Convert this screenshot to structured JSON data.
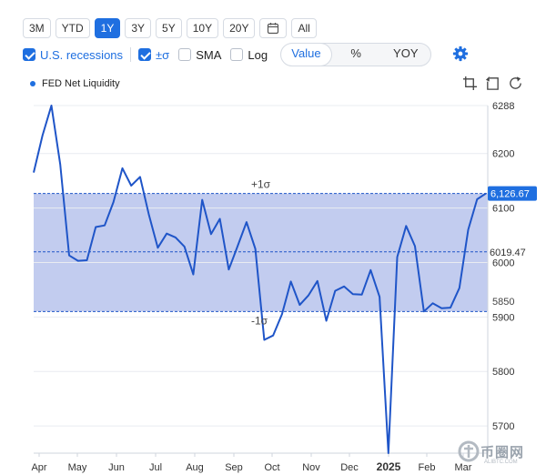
{
  "range_buttons": [
    "3M",
    "YTD",
    "1Y",
    "3Y",
    "5Y",
    "10Y",
    "20Y",
    "All"
  ],
  "active_range": "1Y",
  "options": {
    "recessions_label": "U.S. recessions",
    "sigma_label": "±σ",
    "sma_label": "SMA",
    "log_label": "Log"
  },
  "view_modes": [
    "Value",
    "%",
    "YOY"
  ],
  "active_view": "Value",
  "icons": [
    "calendar-icon",
    "gear-icon",
    "crop-icon",
    "reset-icon",
    "refresh-icon"
  ],
  "accent_color": "#1f6fe0",
  "band_color": "#bfc9ee",
  "watermark": {
    "text": "币圈网",
    "sub": "ALIBTC.COM"
  },
  "chart_data": {
    "type": "line",
    "series": [
      {
        "name": "FED Net Liquidity",
        "values": [
          6165,
          6233,
          6288,
          6180,
          6013,
          6003,
          6004,
          6065,
          6068,
          6111,
          6173,
          6141,
          6157,
          6087,
          6027,
          6053,
          6046,
          6029,
          5978,
          6115,
          6052,
          6080,
          5987,
          6030,
          6074,
          6025,
          5858,
          5866,
          5905,
          5965,
          5922,
          5940,
          5966,
          5893,
          5948,
          5956,
          5942,
          5941,
          5986,
          5937,
          5650,
          6010,
          6067,
          6030,
          5910,
          5925,
          5916,
          5917,
          5953,
          6060,
          6116,
          6126.67
        ]
      }
    ],
    "x_labels": [
      "Apr",
      "May",
      "Jun",
      "Jul",
      "Aug",
      "Sep",
      "Oct",
      "Nov",
      "Dec",
      "2025",
      "Feb",
      "Mar"
    ],
    "y_ticks": [
      5700,
      5800,
      5900,
      6000,
      6100,
      6200,
      6288
    ],
    "ylim": [
      5650,
      6288
    ],
    "mean": 6019.47,
    "mean_label": "6019.47",
    "upper_sigma": 6126.67,
    "lower_sigma": 5910,
    "upper_sigma_label": "+1σ",
    "lower_sigma_label": "-1σ",
    "last_value_label": "6,126.67",
    "partial_tick_label": "5850",
    "legend_placement": "top-left"
  }
}
